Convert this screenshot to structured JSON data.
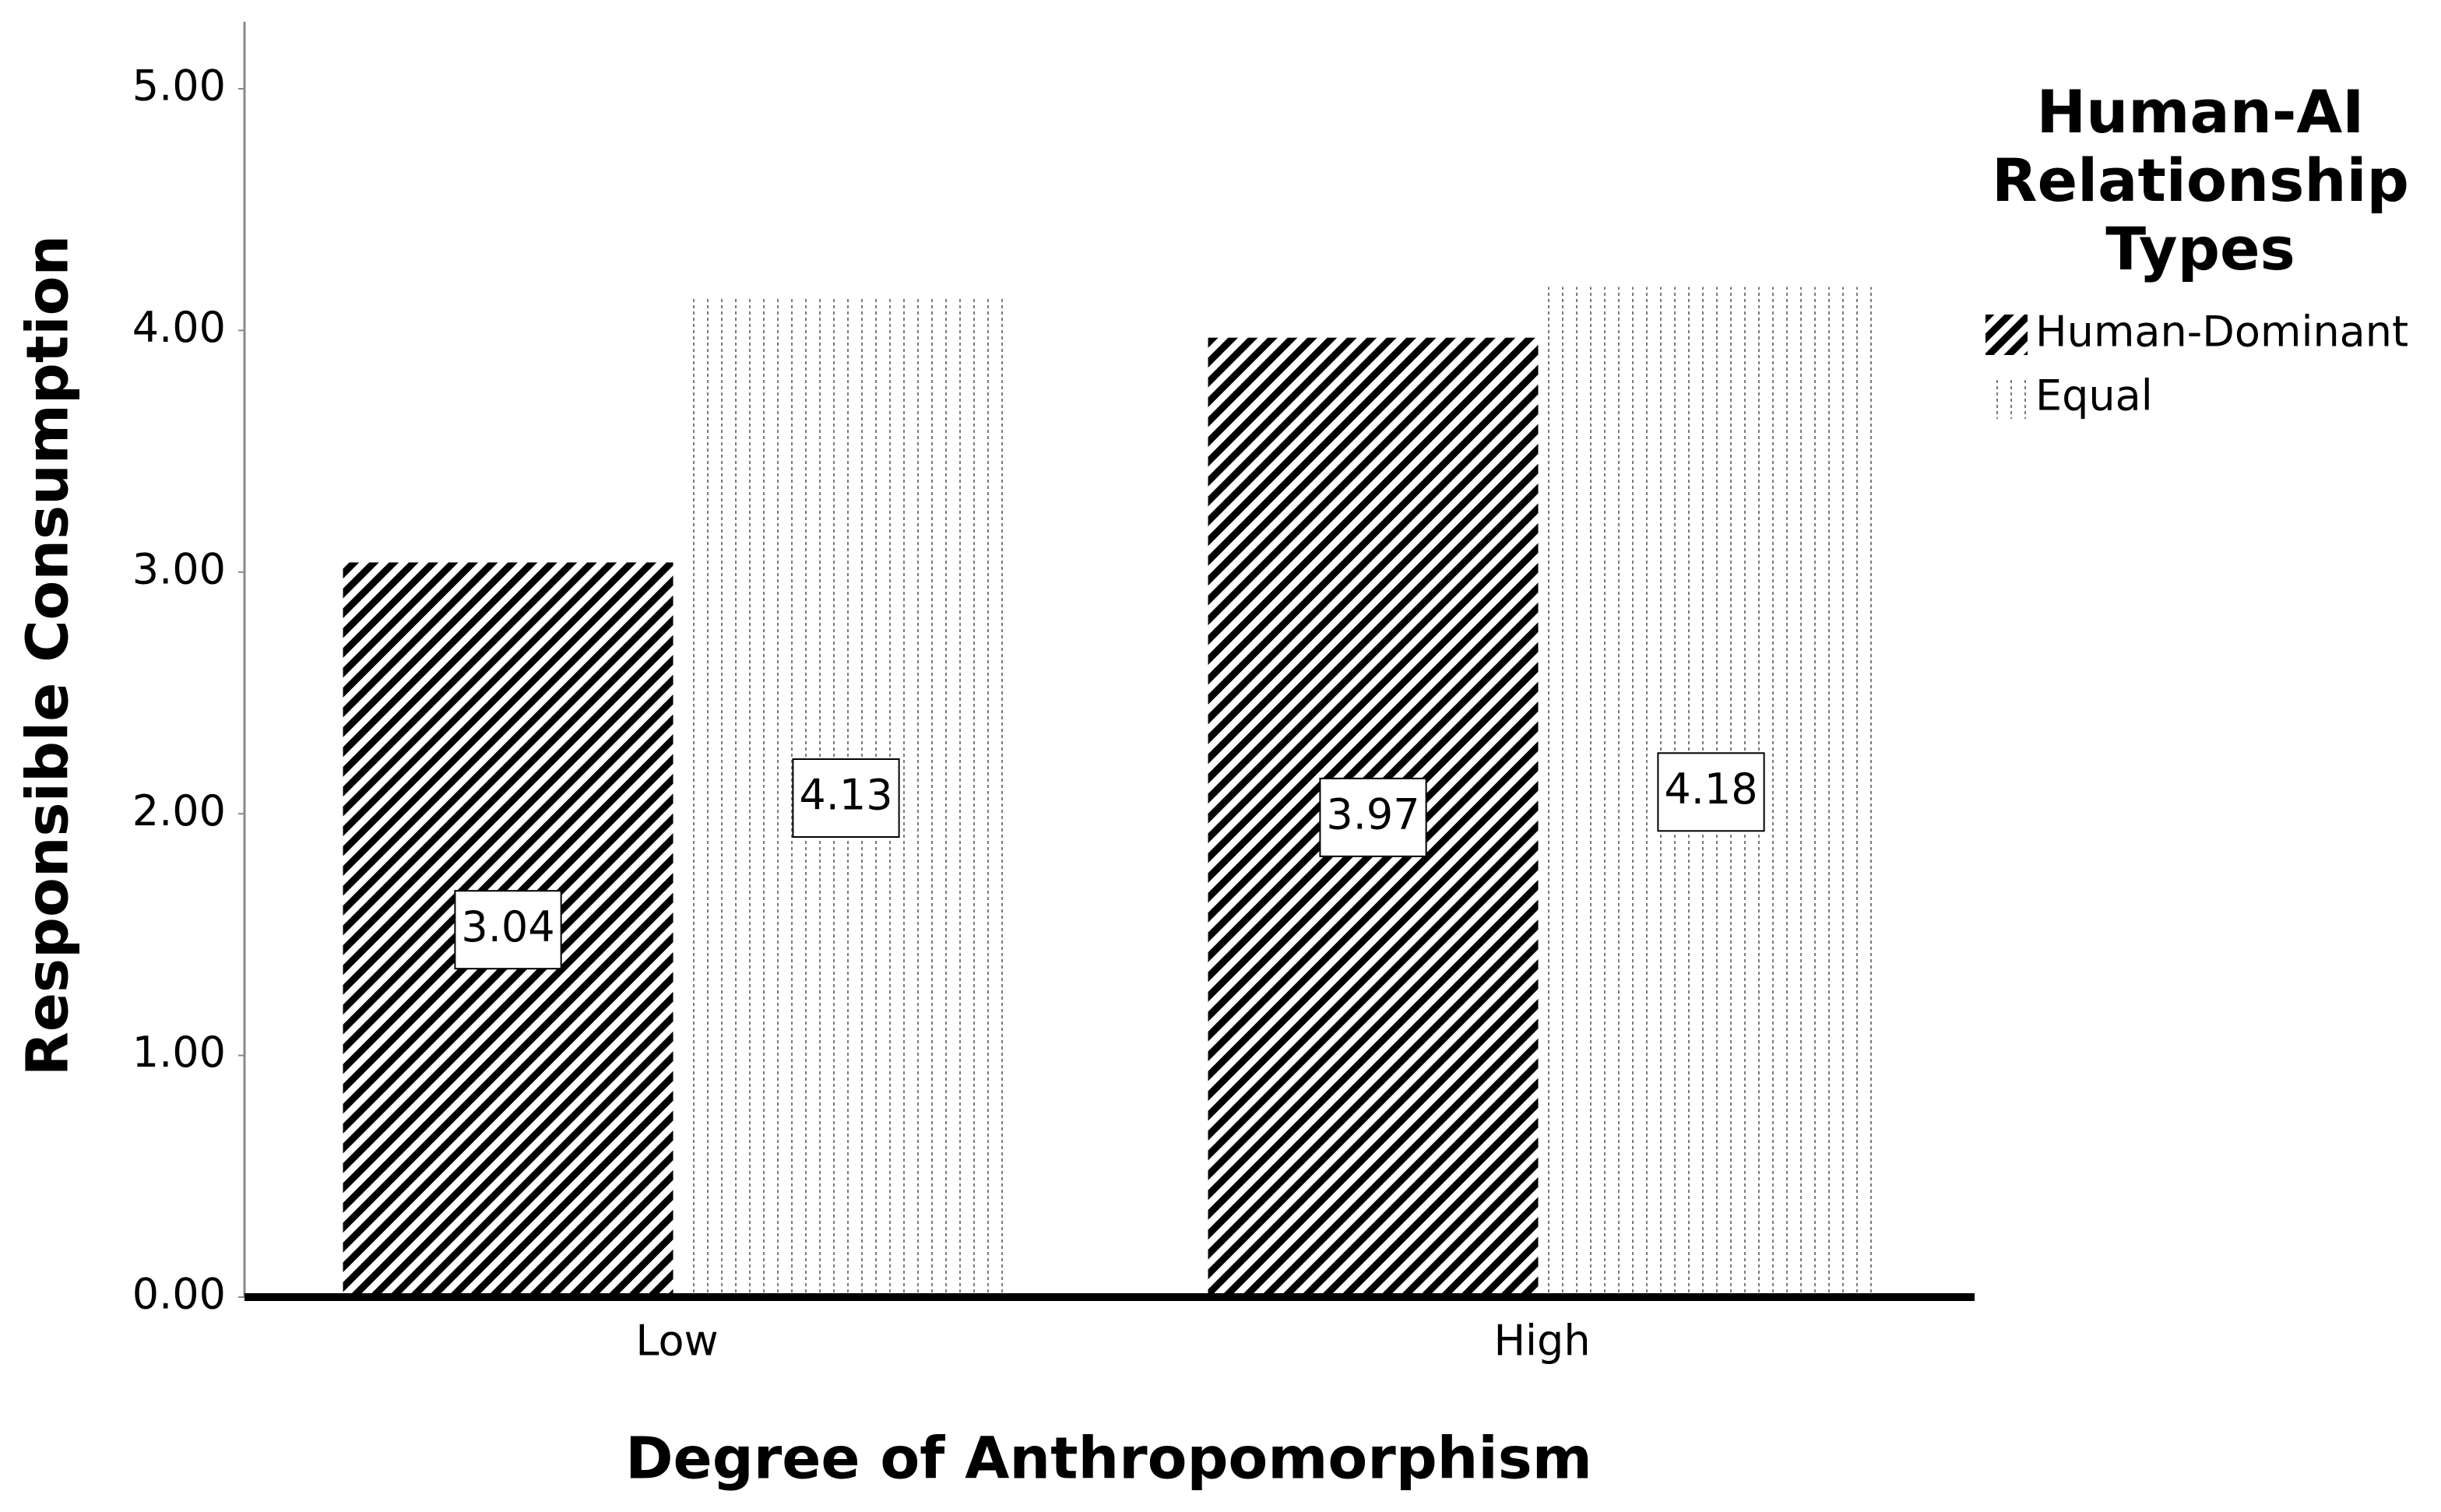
{
  "chart_data": {
    "type": "bar",
    "x_label": "Degree of Anthropomorphism",
    "y_label": "Responsible Consumption",
    "categories": [
      "Low",
      "High"
    ],
    "series": [
      {
        "name": "Human-Dominant",
        "color": "#000000",
        "pattern": "diagonal",
        "values": [
          3.04,
          3.97
        ]
      },
      {
        "name": "Equal",
        "color": "#7a7a7a",
        "pattern": "dotted",
        "values": [
          4.13,
          4.18
        ]
      }
    ],
    "legend_title": "Human-AI Relationship Types",
    "legend": "upper-right",
    "ylim": [
      0,
      5
    ],
    "yticks": [
      {
        "value": 0,
        "label": "0.00"
      },
      {
        "value": 1,
        "label": "1.00"
      },
      {
        "value": 2,
        "label": "2.00"
      },
      {
        "value": 3,
        "label": "3.00"
      },
      {
        "value": 4,
        "label": "4.00"
      },
      {
        "value": 5,
        "label": "5.00"
      }
    ],
    "value_labels_shown": true
  }
}
